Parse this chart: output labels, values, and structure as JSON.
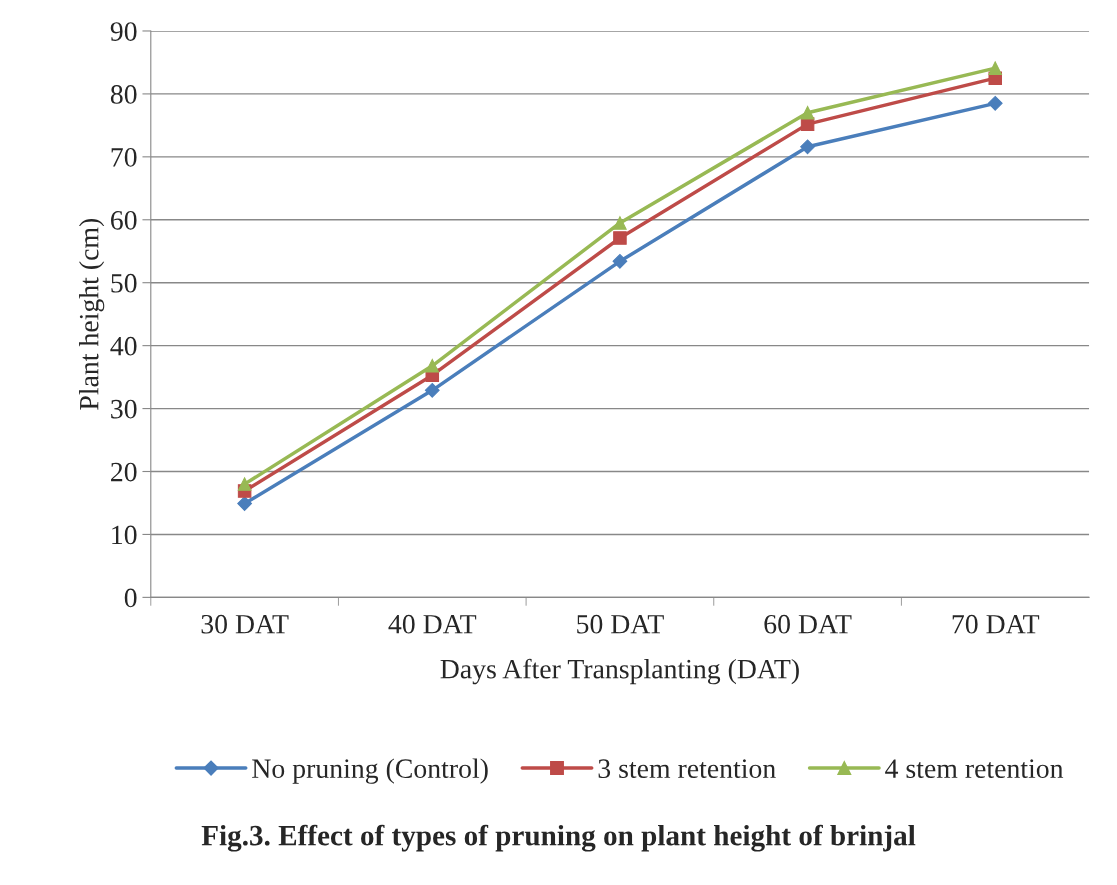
{
  "chart_data": {
    "type": "line",
    "title": "Fig.3. Effect of types of pruning on plant height of brinjal",
    "xlabel": "Days After Transplanting (DAT)",
    "ylabel": "Plant height (cm)",
    "categories": [
      "30 DAT",
      "40 DAT",
      "50 DAT",
      "60 DAT",
      "70 DAT"
    ],
    "series": [
      {
        "name": "No pruning (Control)",
        "color": "#4a7ebb",
        "marker": "diamond",
        "values": [
          14.9,
          32.9,
          53.4,
          71.6,
          78.5
        ]
      },
      {
        "name": "3 stem retention",
        "color": "#be4b48",
        "marker": "square",
        "values": [
          16.9,
          35.3,
          57.1,
          75.2,
          82.5
        ]
      },
      {
        "name": "4 stem retention",
        "color": "#98b954",
        "marker": "triangle",
        "values": [
          18.0,
          36.8,
          59.5,
          77.0,
          84.1
        ]
      }
    ],
    "ylim": [
      0,
      90
    ],
    "yticks": [
      0,
      10,
      20,
      30,
      40,
      50,
      60,
      70,
      80,
      90
    ],
    "grid": "y",
    "legend": "bottom"
  }
}
